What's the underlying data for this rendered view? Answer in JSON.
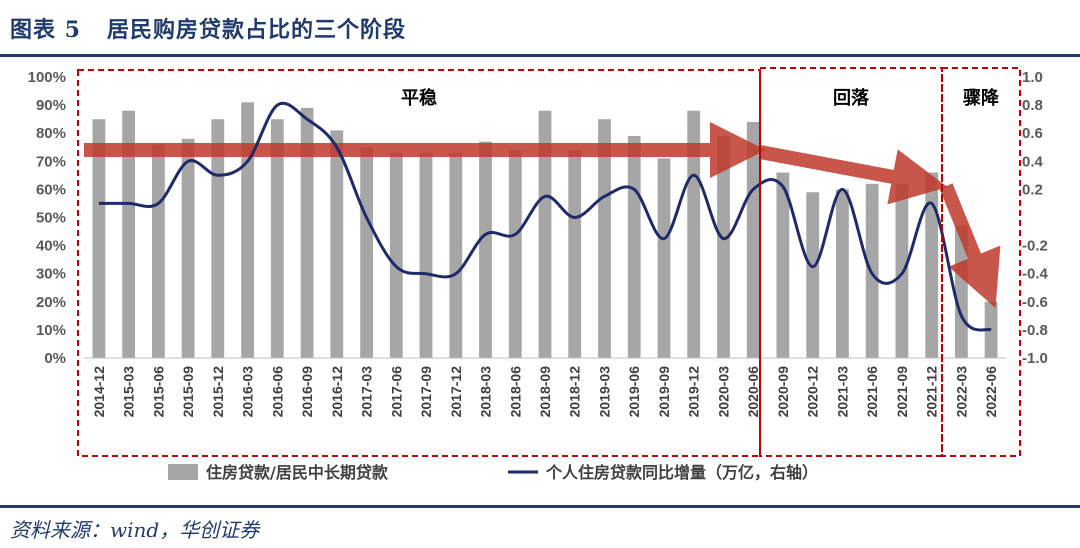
{
  "figure": {
    "label": "图表 5",
    "title": "居民购房贷款占比的三个阶段",
    "source": "资料来源：wind，华创证券"
  },
  "colors": {
    "bar": "#a6a6a6",
    "line": "#1f2a6b",
    "arrow": "#c0392b",
    "dash": "#c00000",
    "title": "#1f3a6b"
  },
  "chart_data": {
    "type": "bar",
    "categories": [
      "2014-12",
      "2015-03",
      "2015-06",
      "2015-09",
      "2015-12",
      "2016-03",
      "2016-06",
      "2016-09",
      "2016-12",
      "2017-03",
      "2017-06",
      "2017-09",
      "2017-12",
      "2018-03",
      "2018-06",
      "2018-09",
      "2018-12",
      "2019-03",
      "2019-06",
      "2019-09",
      "2019-12",
      "2020-03",
      "2020-06",
      "2020-09",
      "2020-12",
      "2021-03",
      "2021-06",
      "2021-09",
      "2021-12",
      "2022-03",
      "2022-06"
    ],
    "series": [
      {
        "name": "住房贷款/居民中长期贷款",
        "axis": "left",
        "kind": "bar",
        "values": [
          85,
          88,
          76,
          78,
          85,
          91,
          85,
          89,
          81,
          75,
          73,
          73,
          73,
          77,
          74,
          88,
          74,
          85,
          79,
          71,
          88,
          79,
          84,
          66,
          59,
          60,
          62,
          62,
          66,
          47,
          20
        ]
      },
      {
        "name": "个人住房贷款同比增量（万亿，右轴）",
        "axis": "right",
        "kind": "line",
        "values": [
          0.1,
          0.1,
          0.1,
          0.4,
          0.3,
          0.4,
          0.8,
          0.7,
          0.5,
          0.0,
          -0.35,
          -0.4,
          -0.4,
          -0.12,
          -0.12,
          0.15,
          0.0,
          0.15,
          0.2,
          -0.15,
          0.3,
          -0.15,
          0.2,
          0.22,
          -0.35,
          0.2,
          -0.4,
          -0.4,
          0.1,
          -0.7,
          -0.8
        ]
      }
    ],
    "y_left": {
      "min": 0,
      "max": 100,
      "step": 10,
      "ticks": [
        "0%",
        "10%",
        "20%",
        "30%",
        "40%",
        "50%",
        "60%",
        "70%",
        "80%",
        "90%",
        "100%"
      ]
    },
    "y_right": {
      "min": -1.0,
      "max": 1.0,
      "ticks": [
        "-1.0",
        "-0.8",
        "-0.6",
        "-0.4",
        "-0.2",
        "",
        "0.2",
        "0.4",
        "0.6",
        "0.8",
        "1.0"
      ]
    },
    "phases": [
      {
        "label": "平稳",
        "from": "2014-12",
        "to": "2020-06"
      },
      {
        "label": "回落",
        "from": "2020-09",
        "to": "2021-12"
      },
      {
        "label": "骤降",
        "from": "2022-03",
        "to": "2022-06"
      }
    ],
    "legend": {
      "placement": "bottom",
      "bar_label": "住房贷款/居民中长期贷款",
      "line_label": "个人住房贷款同比增量（万亿，右轴）"
    }
  }
}
